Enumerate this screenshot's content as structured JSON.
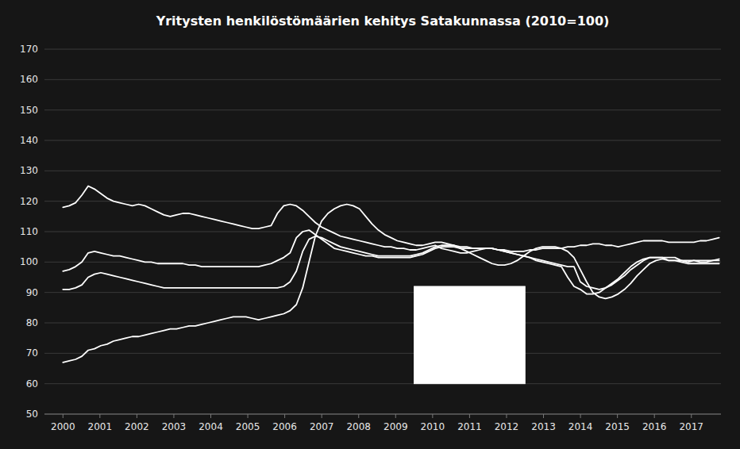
{
  "chart_data": {
    "type": "line",
    "title": "Yritysten henkilöstömäärien kehitys Satakunnassa (2010=100)",
    "grid": true,
    "xlim": [
      1999.5,
      2017.8
    ],
    "xticks": [
      2000,
      2001,
      2002,
      2003,
      2004,
      2005,
      2006,
      2007,
      2008,
      2009,
      2010,
      2011,
      2012,
      2013,
      2014,
      2015,
      2016,
      2017
    ],
    "ylim": [
      50,
      170
    ],
    "yticks": [
      50,
      60,
      70,
      80,
      90,
      100,
      110,
      120,
      130,
      140,
      150,
      160,
      170
    ],
    "x": [
      2000.0,
      2000.170673,
      2000.341346,
      2000.512019,
      2000.682692,
      2000.853365,
      2001.024038,
      2001.194712,
      2001.365385,
      2001.536058,
      2001.706731,
      2001.877404,
      2002.048077,
      2002.21875,
      2002.389423,
      2002.560096,
      2002.730769,
      2002.901442,
      2003.072115,
      2003.242788,
      2003.413462,
      2003.584135,
      2003.754808,
      2003.925481,
      2004.096154,
      2004.266827,
      2004.4375,
      2004.608173,
      2004.778846,
      2004.949519,
      2005.120192,
      2005.290865,
      2005.461538,
      2005.632212,
      2005.802885,
      2005.973558,
      2006.144231,
      2006.314904,
      2006.485577,
      2006.65625,
      2006.826923,
      2006.997596,
      2007.168269,
      2007.338942,
      2007.509615,
      2007.680288,
      2007.850962,
      2008.021635,
      2008.192308,
      2008.362981,
      2008.533654,
      2008.704327,
      2008.875,
      2009.045673,
      2009.216346,
      2009.387019,
      2009.557692,
      2009.728365,
      2009.899038,
      2010.069712,
      2010.240385,
      2010.411058,
      2010.581731,
      2010.752404,
      2010.923077,
      2011.09375,
      2011.264423,
      2011.435096,
      2011.605769,
      2011.776442,
      2011.947115,
      2012.117788,
      2012.288462,
      2012.459135,
      2012.629808,
      2012.800481,
      2012.971154,
      2013.141827,
      2013.3125,
      2013.483173,
      2013.653846,
      2013.824519,
      2013.995192,
      2014.165865,
      2014.336538,
      2014.507212,
      2014.677885,
      2014.848558,
      2015.019231,
      2015.189904,
      2015.360577,
      2015.53125,
      2015.701923,
      2015.872596,
      2016.043269,
      2016.213942,
      2016.384615,
      2016.555288,
      2016.725962,
      2016.896635,
      2017.067308,
      2017.237981,
      2017.408654,
      2017.579327,
      2017.75
    ],
    "series": [
      {
        "color": "#ffffff",
        "values": [
          118.0,
          118.5,
          119.5,
          122.0,
          125.0,
          124.0,
          122.5,
          121.0,
          120.0,
          119.5,
          119.0,
          118.5,
          119.0,
          118.5,
          117.5,
          116.5,
          115.5,
          115.0,
          115.5,
          116.0,
          116.0,
          115.5,
          115.0,
          114.5,
          114.0,
          113.5,
          113.0,
          112.5,
          112.0,
          111.5,
          111.0,
          111.0,
          111.5,
          112.0,
          116.0,
          118.5,
          119.0,
          118.5,
          117.0,
          115.0,
          113.0,
          111.5,
          110.5,
          109.5,
          108.5,
          108.0,
          107.5,
          107.0,
          106.5,
          106.0,
          105.5,
          105.0,
          105.0,
          104.5,
          104.5,
          104.0,
          104.0,
          104.5,
          105.0,
          105.5,
          104.5,
          104.0,
          103.5,
          103.0,
          103.0,
          103.5,
          104.0,
          104.5,
          104.5,
          104.0,
          104.0,
          103.5,
          103.5,
          103.5,
          104.0,
          104.0,
          104.5,
          104.5,
          104.5,
          104.5,
          105.0,
          105.0,
          105.5,
          105.5,
          106.0,
          106.0,
          105.5,
          105.5,
          105.0,
          105.5,
          106.0,
          106.5,
          107.0,
          107.0,
          107.0,
          107.0,
          106.5,
          106.5,
          106.5,
          106.5,
          106.5,
          107.0,
          107.0,
          107.5,
          108.0
        ]
      },
      {
        "color": "#ffffff",
        "values": [
          97.0,
          97.5,
          98.5,
          100.0,
          103.0,
          103.5,
          103.0,
          102.5,
          102.0,
          102.0,
          101.5,
          101.0,
          100.5,
          100.0,
          100.0,
          99.5,
          99.5,
          99.5,
          99.5,
          99.5,
          99.0,
          99.0,
          98.5,
          98.5,
          98.5,
          98.5,
          98.5,
          98.5,
          98.5,
          98.5,
          98.5,
          98.5,
          99.0,
          99.5,
          100.5,
          101.5,
          103.0,
          108.0,
          110.0,
          110.5,
          109.0,
          107.5,
          106.0,
          104.5,
          104.0,
          103.5,
          103.0,
          102.5,
          102.0,
          102.0,
          101.5,
          101.5,
          101.5,
          101.5,
          101.5,
          101.5,
          102.0,
          102.5,
          103.5,
          104.5,
          105.0,
          105.0,
          105.0,
          104.5,
          104.5,
          104.5,
          104.5,
          104.5,
          104.5,
          104.0,
          103.5,
          103.0,
          102.5,
          102.0,
          101.5,
          101.0,
          100.5,
          100.0,
          99.5,
          99.0,
          98.5,
          98.5,
          93.5,
          92.0,
          91.5,
          91.0,
          91.5,
          92.5,
          94.0,
          95.5,
          97.5,
          99.0,
          100.5,
          101.5,
          101.5,
          101.5,
          101.5,
          101.5,
          100.5,
          100.5,
          100.5,
          100.0,
          100.0,
          100.5,
          101.0
        ]
      },
      {
        "color": "#ffffff",
        "values": [
          91.0,
          91.0,
          91.5,
          92.5,
          95.0,
          96.0,
          96.5,
          96.0,
          95.5,
          95.0,
          94.5,
          94.0,
          93.5,
          93.0,
          92.5,
          92.0,
          91.5,
          91.5,
          91.5,
          91.5,
          91.5,
          91.5,
          91.5,
          91.5,
          91.5,
          91.5,
          91.5,
          91.5,
          91.5,
          91.5,
          91.5,
          91.5,
          91.5,
          91.5,
          91.5,
          92.0,
          93.5,
          97.0,
          103.5,
          107.5,
          108.5,
          108.0,
          107.0,
          106.0,
          105.0,
          104.5,
          104.0,
          103.5,
          103.0,
          102.5,
          102.0,
          102.0,
          102.0,
          102.0,
          102.0,
          102.0,
          102.5,
          103.0,
          104.0,
          105.0,
          105.5,
          105.5,
          105.5,
          105.0,
          105.0,
          104.5,
          104.5,
          104.5,
          104.5,
          104.0,
          103.5,
          103.0,
          102.5,
          102.0,
          101.5,
          100.5,
          100.0,
          99.5,
          99.0,
          98.5,
          95.0,
          92.0,
          91.0,
          89.5,
          89.5,
          90.0,
          91.5,
          93.0,
          94.5,
          96.5,
          98.5,
          100.0,
          101.0,
          101.5,
          101.5,
          101.5,
          100.5,
          100.5,
          100.5,
          100.0,
          100.5,
          100.5,
          100.5,
          100.5,
          100.5
        ]
      },
      {
        "color": "#ffffff",
        "values": [
          67.0,
          67.5,
          68.0,
          69.0,
          71.0,
          71.5,
          72.5,
          73.0,
          74.0,
          74.5,
          75.0,
          75.5,
          75.5,
          76.0,
          76.5,
          77.0,
          77.5,
          78.0,
          78.0,
          78.5,
          79.0,
          79.0,
          79.5,
          80.0,
          80.5,
          81.0,
          81.5,
          82.0,
          82.0,
          82.0,
          81.5,
          81.0,
          81.5,
          82.0,
          82.5,
          83.0,
          84.0,
          86.0,
          91.5,
          100.0,
          108.5,
          113.5,
          116.0,
          117.5,
          118.5,
          119.0,
          118.5,
          117.5,
          115.0,
          112.5,
          110.5,
          109.0,
          108.0,
          107.0,
          106.5,
          106.0,
          105.5,
          105.5,
          106.0,
          106.5,
          106.5,
          106.0,
          105.5,
          104.5,
          103.5,
          102.5,
          101.5,
          100.5,
          99.5,
          99.0,
          99.0,
          99.5,
          100.5,
          102.0,
          103.5,
          104.5,
          105.0,
          105.0,
          105.0,
          104.5,
          103.5,
          101.5,
          97.5,
          93.5,
          90.0,
          88.5,
          88.0,
          88.5,
          89.5,
          91.0,
          93.0,
          95.5,
          97.5,
          99.5,
          100.5,
          101.0,
          100.5,
          100.5,
          100.0,
          99.5,
          99.5,
          99.5,
          99.5,
          99.5,
          99.5
        ]
      }
    ],
    "rectangle": {
      "x": 2009.5,
      "y": 60,
      "width": 3.0,
      "height": 32,
      "color": "#ffffff"
    }
  }
}
